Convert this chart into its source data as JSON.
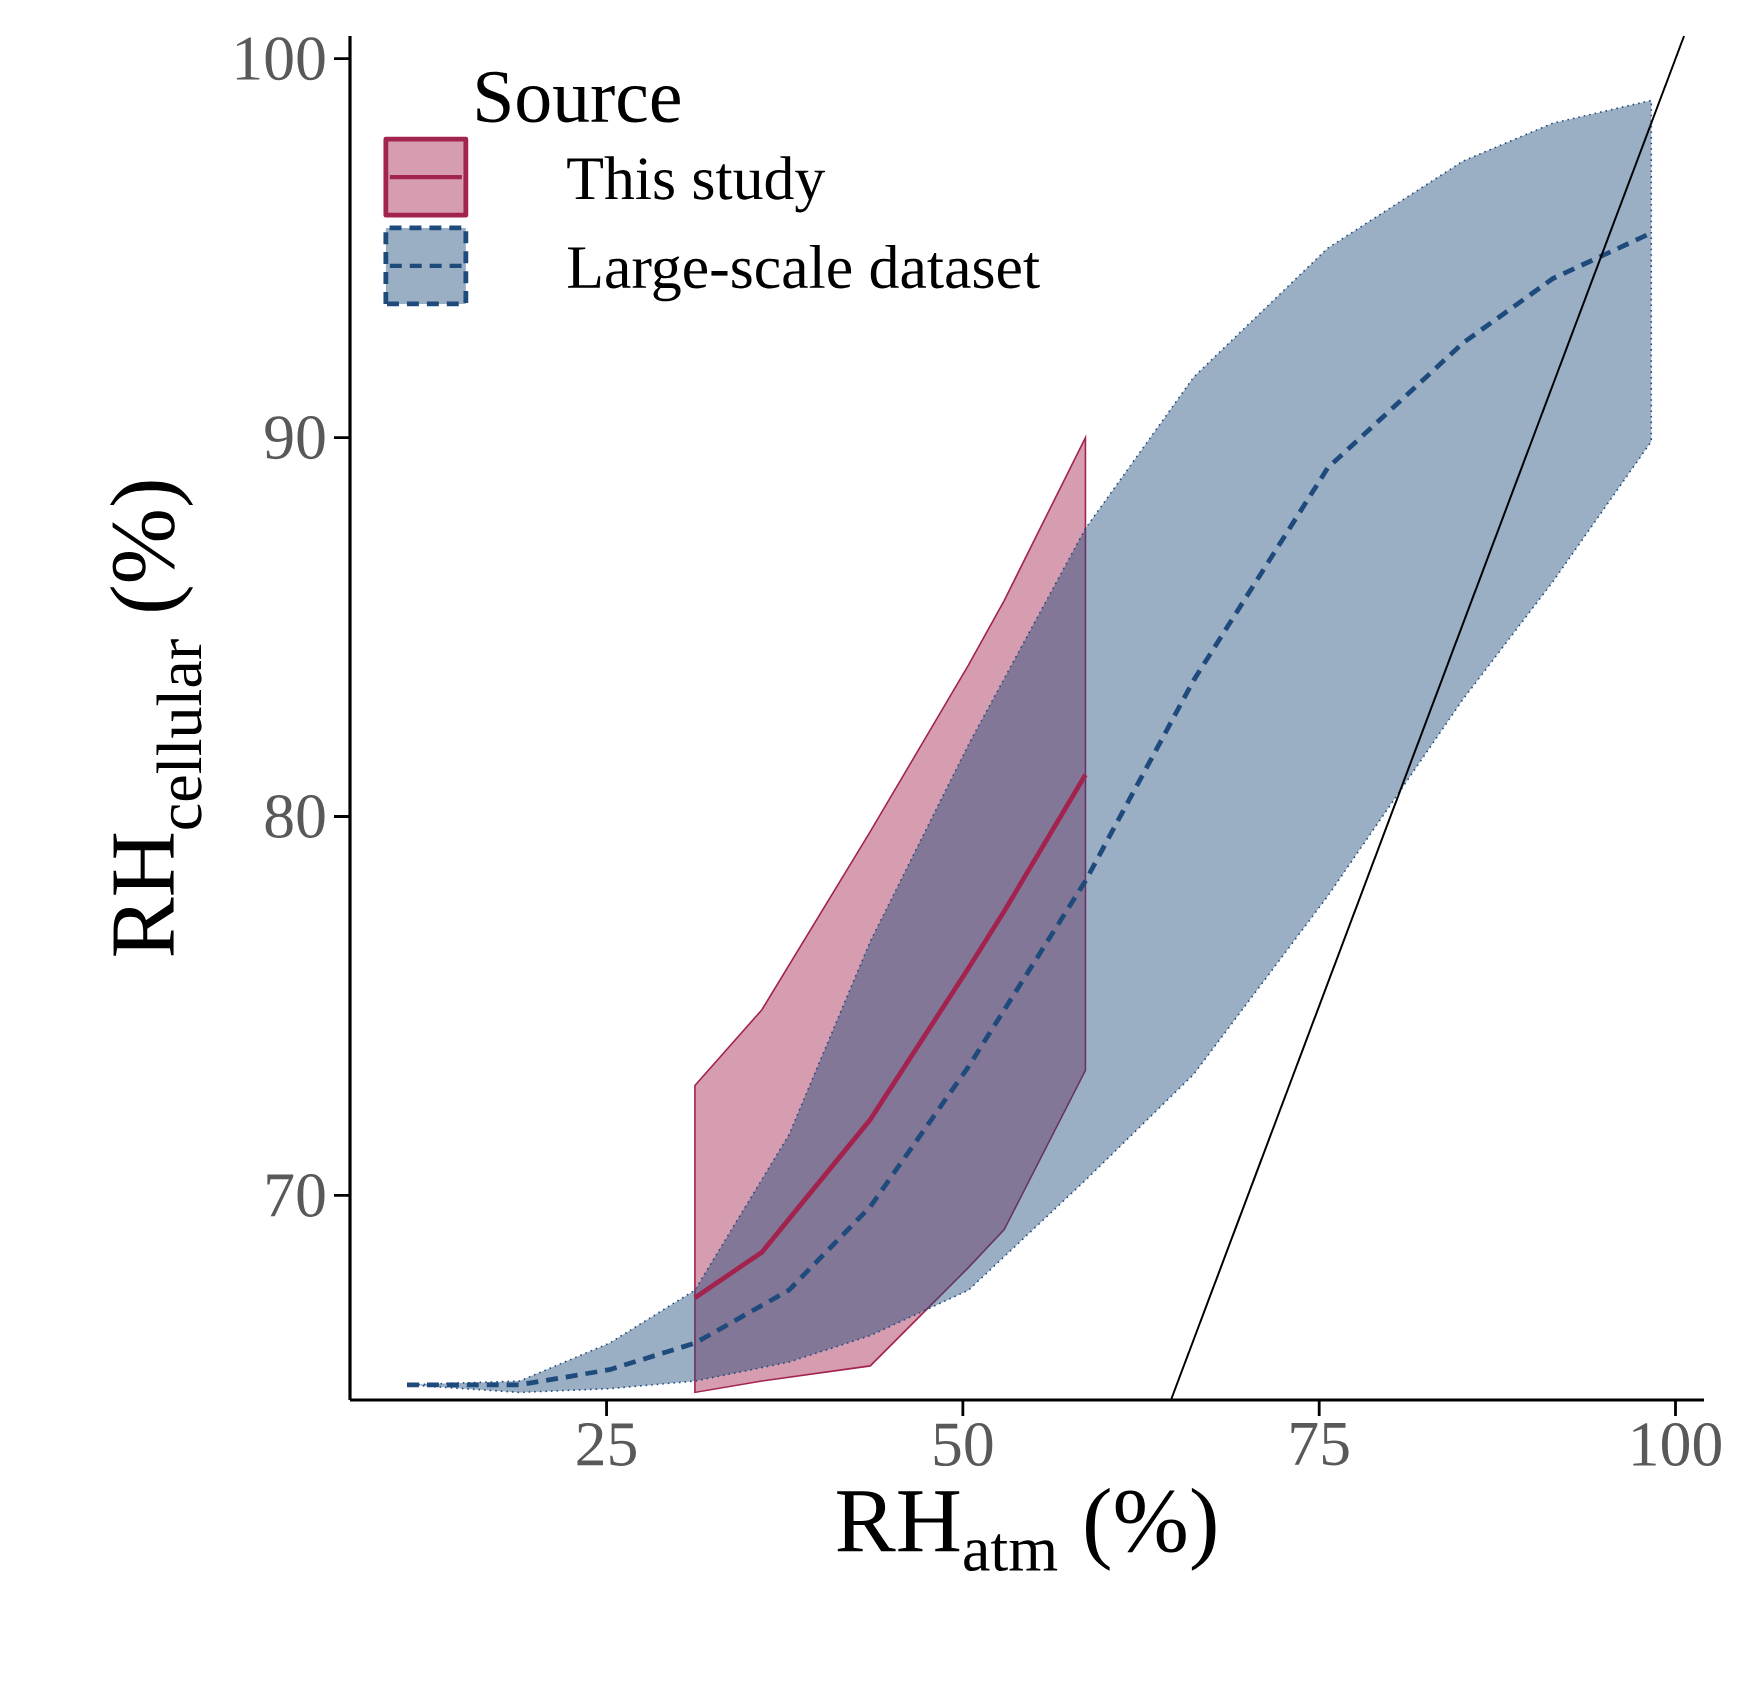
{
  "chart_data": {
    "type": "line",
    "xlabel": "RH$_{atm}$ (%)",
    "ylabel": "RH$_{cellular}$ (%)",
    "legend_title": "Source",
    "legend": "top left",
    "grid": false,
    "xlim": [
      7,
      102
    ],
    "ylim": [
      64.6,
      100.6
    ],
    "xticks": [
      25,
      50,
      75,
      100
    ],
    "yticks": [
      70,
      80,
      90,
      100
    ],
    "series": [
      {
        "name": "This study",
        "color": "#a3234f",
        "line_style": "solid",
        "x": [
          31.2,
          35.9,
          43.5,
          50.4,
          52.9,
          58.6
        ],
        "values": [
          67.3,
          68.5,
          72.0,
          76.0,
          77.5,
          81.1
        ],
        "lower": [
          64.8,
          65.1,
          65.5,
          68.1,
          69.1,
          73.3
        ],
        "upper": [
          72.9,
          74.9,
          79.6,
          84.0,
          85.7,
          90.0
        ]
      },
      {
        "name": "Large-scale dataset",
        "color": "#1f4b7c",
        "line_style": "dashed",
        "x": [
          11,
          18.9,
          25.2,
          31.2,
          37.8,
          43.5,
          50.4,
          58.6,
          66.2,
          75.6,
          85.1,
          91.4,
          98.3
        ],
        "values": [
          65.0,
          65.0,
          65.4,
          66.1,
          67.5,
          69.7,
          73.4,
          78.3,
          83.6,
          89.2,
          92.5,
          94.2,
          95.4
        ],
        "lower": [
          65.0,
          64.8,
          64.9,
          65.1,
          65.6,
          66.3,
          67.5,
          70.4,
          73.2,
          77.9,
          83.1,
          86.2,
          89.9
        ],
        "upper": [
          65.0,
          65.1,
          66.1,
          67.5,
          71.6,
          76.7,
          81.9,
          87.6,
          91.6,
          95.0,
          97.3,
          98.3,
          98.9
        ]
      },
      {
        "color": "#000000",
        "line_style": "solid",
        "x": [
          64.6,
          100.6
        ],
        "values": [
          64.6,
          100.6
        ]
      }
    ]
  }
}
